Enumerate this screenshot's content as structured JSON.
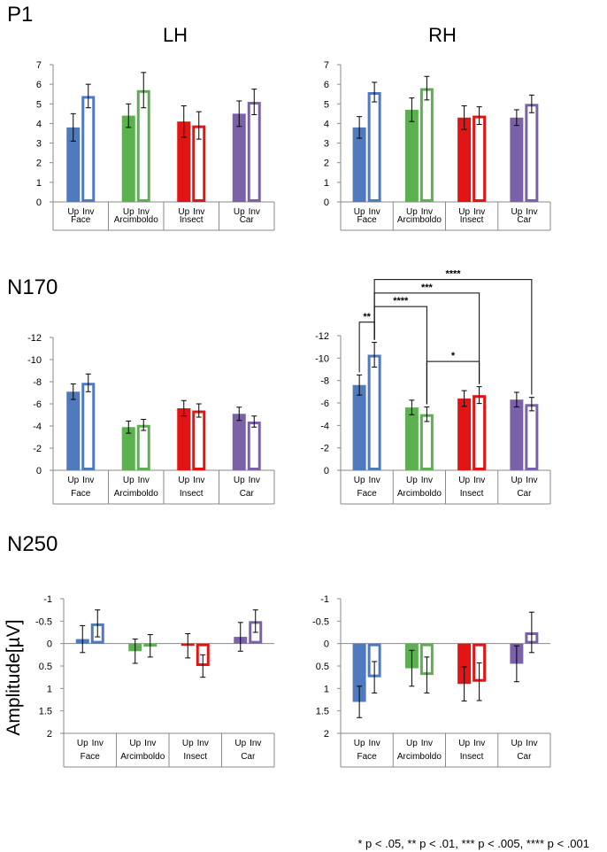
{
  "figure": {
    "row_titles": [
      "P1",
      "N170",
      "N250"
    ],
    "hemisphere_labels": [
      "LH",
      "RH"
    ],
    "y_axis_title": "Amplitude[µV]",
    "footnote": "* p < .05, ** p < .01, *** p < .005, **** p < .001",
    "condition_labels": [
      "Up",
      "Inv"
    ],
    "colors": {
      "Face": "#4f7ac0",
      "Arcimboldo": "#5cb04f",
      "Insect": "#e31414",
      "Car": "#7b62a8"
    }
  },
  "chart_data": [
    {
      "id": "p1-lh",
      "type": "bar",
      "row": "P1",
      "hemisphere": "LH",
      "categories": [
        "Face",
        "Arcimboldo",
        "Insect",
        "Car"
      ],
      "series": [
        {
          "name": "Up",
          "values": [
            3.8,
            4.4,
            4.1,
            4.5
          ],
          "errors": [
            0.7,
            0.6,
            0.8,
            0.65
          ]
        },
        {
          "name": "Inv",
          "values": [
            5.4,
            5.7,
            3.9,
            5.1
          ],
          "errors": [
            0.6,
            0.9,
            0.7,
            0.65
          ]
        }
      ],
      "ylim": [
        0,
        7
      ],
      "yticks": [
        0,
        1,
        2,
        3,
        4,
        5,
        6,
        7
      ],
      "ytick_labels": [
        "0",
        "1",
        "2",
        "3",
        "4",
        "5",
        "6",
        "7"
      ],
      "inverted": false,
      "annotations": []
    },
    {
      "id": "p1-rh",
      "type": "bar",
      "row": "P1",
      "hemisphere": "RH",
      "categories": [
        "Face",
        "Arcimboldo",
        "Insect",
        "Car"
      ],
      "series": [
        {
          "name": "Up",
          "values": [
            3.8,
            4.7,
            4.3,
            4.3
          ],
          "errors": [
            0.55,
            0.6,
            0.6,
            0.4
          ]
        },
        {
          "name": "Inv",
          "values": [
            5.6,
            5.8,
            4.4,
            5.0
          ],
          "errors": [
            0.5,
            0.6,
            0.45,
            0.45
          ]
        }
      ],
      "ylim": [
        0,
        7
      ],
      "yticks": [
        0,
        1,
        2,
        3,
        4,
        5,
        6,
        7
      ],
      "ytick_labels": [
        "0",
        "1",
        "2",
        "3",
        "4",
        "5",
        "6",
        "7"
      ],
      "inverted": false,
      "annotations": []
    },
    {
      "id": "n170-lh",
      "type": "bar",
      "row": "N170",
      "hemisphere": "LH",
      "categories": [
        "Face",
        "Arcimboldo",
        "Insect",
        "Car"
      ],
      "series": [
        {
          "name": "Up",
          "values": [
            -7.1,
            -3.9,
            -5.6,
            -5.1
          ],
          "errors": [
            0.7,
            0.55,
            0.7,
            0.6
          ]
        },
        {
          "name": "Inv",
          "values": [
            -7.9,
            -4.1,
            -5.4,
            -4.4
          ],
          "errors": [
            0.8,
            0.5,
            0.6,
            0.5
          ]
        }
      ],
      "ylim": [
        0,
        -12
      ],
      "yticks": [
        0,
        -2,
        -4,
        -6,
        -8,
        -10,
        -12
      ],
      "ytick_labels": [
        "0",
        "-2",
        "-4",
        "-6",
        "-8",
        "-10",
        "-12"
      ],
      "inverted": true,
      "annotations": []
    },
    {
      "id": "n170-rh",
      "type": "bar",
      "row": "N170",
      "hemisphere": "RH",
      "categories": [
        "Face",
        "Arcimboldo",
        "Insect",
        "Car"
      ],
      "series": [
        {
          "name": "Up",
          "values": [
            -7.6,
            -5.6,
            -6.4,
            -6.3
          ],
          "errors": [
            0.9,
            0.65,
            0.7,
            0.65
          ]
        },
        {
          "name": "Inv",
          "values": [
            -10.3,
            -5.0,
            -6.7,
            -5.9
          ],
          "errors": [
            1.1,
            0.65,
            0.75,
            0.6
          ]
        }
      ],
      "ylim": [
        0,
        -12
      ],
      "yticks": [
        0,
        -2,
        -4,
        -6,
        -8,
        -10,
        -12
      ],
      "ytick_labels": [
        "0",
        "-2",
        "-4",
        "-6",
        "-8",
        "-10",
        "-12"
      ],
      "inverted": true,
      "annotations": [
        {
          "label": "**",
          "from": [
            "Face",
            "Up"
          ],
          "to": [
            "Face",
            "Inv"
          ],
          "level": -13.2
        },
        {
          "label": "****",
          "from": [
            "Face",
            "Inv"
          ],
          "to": [
            "Arcimboldo",
            "Inv"
          ],
          "level": -14.6
        },
        {
          "label": "***",
          "from": [
            "Face",
            "Inv"
          ],
          "to": [
            "Insect",
            "Inv"
          ],
          "level": -15.8
        },
        {
          "label": "****",
          "from": [
            "Face",
            "Inv"
          ],
          "to": [
            "Car",
            "Inv"
          ],
          "level": -17.0
        },
        {
          "label": "*",
          "from": [
            "Arcimboldo",
            "Inv"
          ],
          "to": [
            "Insect",
            "Inv"
          ],
          "level": -9.7
        }
      ]
    },
    {
      "id": "n250-lh",
      "type": "bar",
      "row": "N250",
      "hemisphere": "LH",
      "categories": [
        "Face",
        "Arcimboldo",
        "Insect",
        "Car"
      ],
      "series": [
        {
          "name": "Up",
          "values": [
            -0.1,
            0.17,
            0.05,
            -0.15
          ],
          "errors": [
            0.3,
            0.27,
            0.27,
            0.32
          ]
        },
        {
          "name": "Inv",
          "values": [
            -0.45,
            0.05,
            0.5,
            -0.5
          ],
          "errors": [
            0.3,
            0.25,
            0.25,
            0.25
          ]
        }
      ],
      "ylim": [
        2,
        -1
      ],
      "yticks": [
        -1,
        -0.5,
        0,
        0.5,
        1,
        1.5,
        2
      ],
      "ytick_labels": [
        "-1",
        "-0.5",
        "0",
        "0.5",
        "1",
        "1.5",
        "2"
      ],
      "inverted": true,
      "annotations": []
    },
    {
      "id": "n250-rh",
      "type": "bar",
      "row": "N250",
      "hemisphere": "RH",
      "categories": [
        "Face",
        "Arcimboldo",
        "Insect",
        "Car"
      ],
      "series": [
        {
          "name": "Up",
          "values": [
            1.3,
            0.55,
            0.9,
            0.45
          ],
          "errors": [
            0.35,
            0.4,
            0.38,
            0.4
          ]
        },
        {
          "name": "Inv",
          "values": [
            0.75,
            0.7,
            0.85,
            -0.25
          ],
          "errors": [
            0.35,
            0.4,
            0.42,
            0.45
          ]
        }
      ],
      "ylim": [
        2,
        -1
      ],
      "yticks": [
        -1,
        -0.5,
        0,
        0.5,
        1,
        1.5,
        2
      ],
      "ytick_labels": [
        "-1",
        "-0.5",
        "0",
        "0.5",
        "1",
        "1.5",
        "2"
      ],
      "inverted": true,
      "annotations": []
    }
  ]
}
